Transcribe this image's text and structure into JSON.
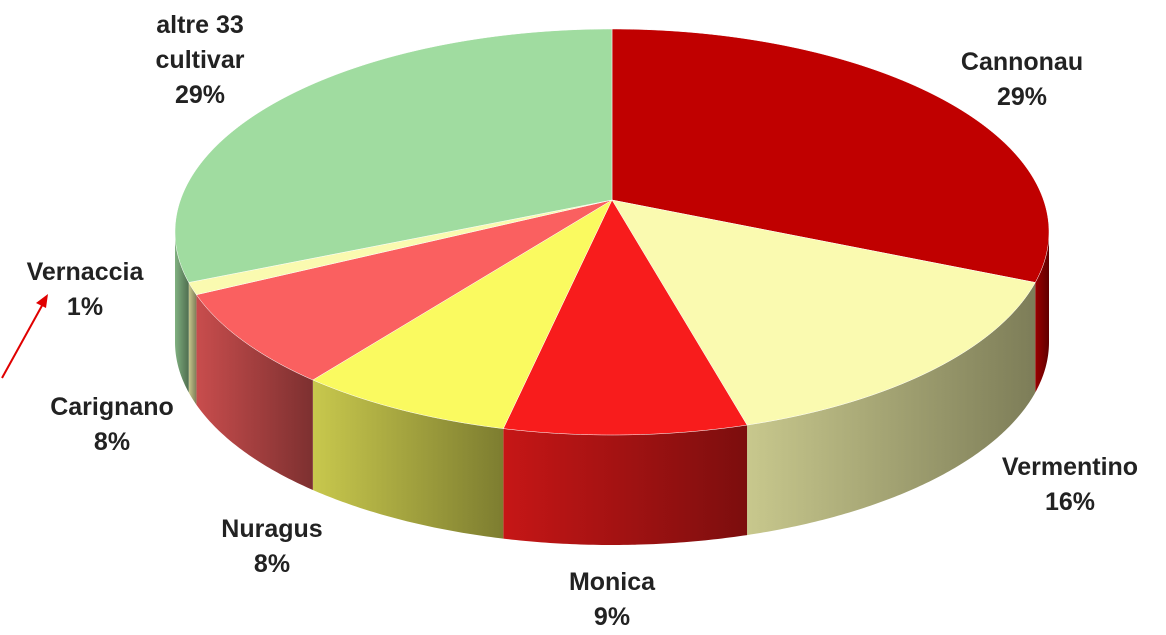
{
  "chart_data": {
    "type": "pie",
    "categories": [
      "Cannonau",
      "Vermentino",
      "Monica",
      "Nuragus",
      "Carignano",
      "Vernaccia",
      "altre 33 cultivar"
    ],
    "values": [
      29,
      16,
      9,
      8,
      8,
      1,
      29
    ],
    "value_labels": [
      "29%",
      "16%",
      "9%",
      "8%",
      "8%",
      "1%",
      "29%"
    ],
    "colors": [
      "#c00000",
      "#fafab0",
      "#f81c1c",
      "#fafa60",
      "#fa6060",
      "#fafab0",
      "#a0dca0"
    ]
  }
}
